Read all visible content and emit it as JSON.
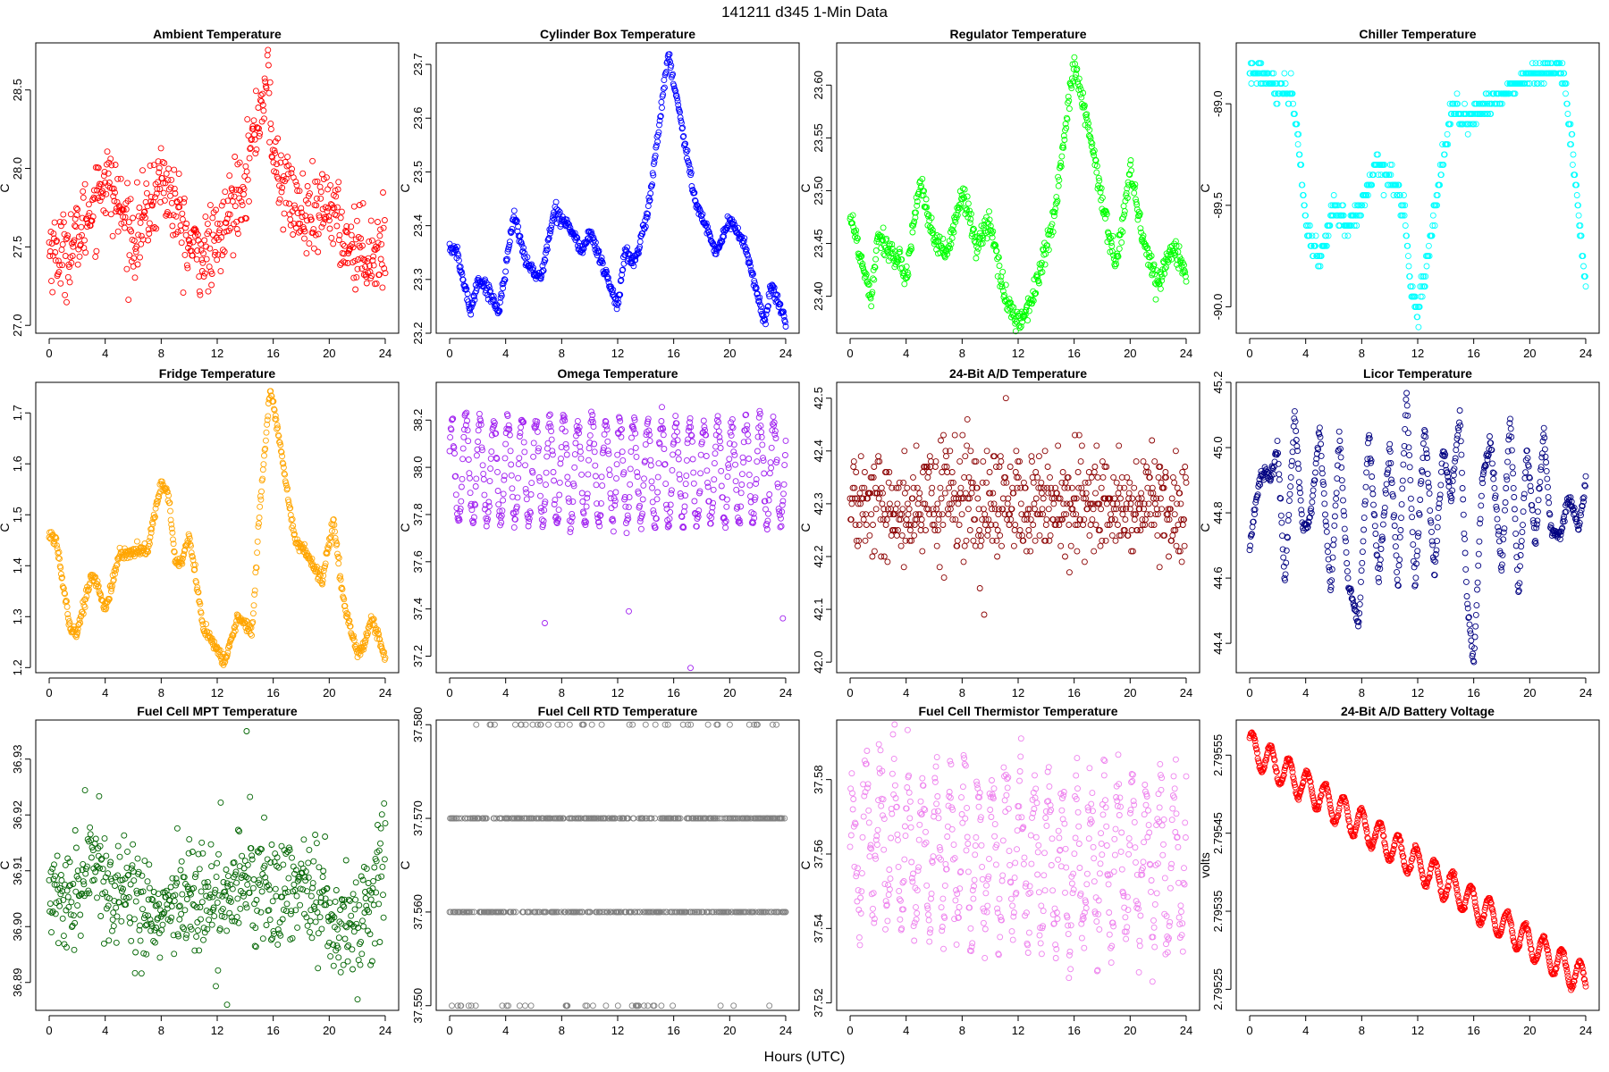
{
  "figure": {
    "suptitle": "141211    d345    1-Min Data",
    "xlabel": "Hours (UTC)"
  },
  "chart_data": [
    {
      "type": "scatter",
      "title": "Ambient Temperature",
      "ylabel": "C",
      "color": "#ff0000",
      "xlim": [
        -0.96,
        24.96
      ],
      "ylim": [
        26.95,
        28.8
      ],
      "xticks": [
        0,
        4,
        8,
        12,
        16,
        20,
        24
      ],
      "yticks": [
        27.0,
        27.5,
        28.0,
        28.5
      ],
      "ytick_labels": [
        "27.0",
        "27.5",
        "28.0",
        "28.5"
      ],
      "noise": 0.13,
      "x": [
        0,
        1,
        2,
        3,
        4,
        5,
        6,
        7,
        8,
        9,
        10,
        11,
        12,
        13,
        14,
        15,
        15.6,
        16,
        17,
        18,
        19,
        20,
        21,
        22,
        23,
        24
      ],
      "y": [
        27.5,
        27.45,
        27.55,
        27.75,
        27.95,
        27.75,
        27.55,
        27.7,
        27.95,
        27.75,
        27.5,
        27.45,
        27.5,
        27.75,
        27.95,
        28.35,
        28.6,
        28.05,
        27.85,
        27.7,
        27.65,
        27.8,
        27.55,
        27.5,
        27.45,
        27.5
      ]
    },
    {
      "type": "scatter",
      "title": "Cylinder Box Temperature",
      "ylabel": "C",
      "color": "#0000ff",
      "xlim": [
        -0.96,
        24.96
      ],
      "ylim": [
        23.2,
        23.74
      ],
      "xticks": [
        0,
        4,
        8,
        12,
        16,
        20,
        24
      ],
      "yticks": [
        23.2,
        23.3,
        23.4,
        23.5,
        23.6,
        23.7
      ],
      "ytick_labels": [
        "23.2",
        "23.3",
        "23.4",
        "23.5",
        "23.6",
        "23.7"
      ],
      "noise": 0.006,
      "x": [
        0,
        0.5,
        1.5,
        2,
        2.8,
        3.5,
        4.6,
        5.5,
        6.5,
        7.5,
        8.5,
        9.5,
        10,
        11,
        12,
        12.5,
        13.2,
        14.2,
        15.6,
        16.5,
        17.5,
        19,
        20,
        21,
        22.5,
        23,
        24
      ],
      "y": [
        23.36,
        23.35,
        23.24,
        23.3,
        23.28,
        23.24,
        23.42,
        23.33,
        23.3,
        23.43,
        23.4,
        23.35,
        23.39,
        23.32,
        23.25,
        23.35,
        23.33,
        23.43,
        23.72,
        23.6,
        23.45,
        23.35,
        23.41,
        23.37,
        23.22,
        23.29,
        23.22
      ]
    },
    {
      "type": "scatter",
      "title": "Regulator Temperature",
      "ylabel": "C",
      "color": "#00ff00",
      "xlim": [
        -0.96,
        24.96
      ],
      "ylim": [
        23.365,
        23.64
      ],
      "xticks": [
        0,
        4,
        8,
        12,
        16,
        20,
        24
      ],
      "yticks": [
        23.4,
        23.45,
        23.5,
        23.55,
        23.6
      ],
      "ytick_labels": [
        "23.40",
        "23.45",
        "23.50",
        "23.55",
        "23.60"
      ],
      "noise": 0.006,
      "x": [
        0,
        0.5,
        1.5,
        2,
        3,
        4,
        5,
        6,
        7,
        8,
        9,
        10,
        11,
        11.8,
        12.5,
        13.5,
        14.5,
        16,
        17,
        18,
        19,
        20,
        21,
        22,
        23,
        24
      ],
      "y": [
        23.48,
        23.45,
        23.4,
        23.46,
        23.44,
        23.42,
        23.51,
        23.45,
        23.44,
        23.5,
        23.45,
        23.47,
        23.4,
        23.38,
        23.38,
        23.42,
        23.47,
        23.62,
        23.56,
        23.49,
        23.43,
        23.52,
        23.45,
        23.41,
        23.45,
        23.42
      ]
    },
    {
      "type": "scatter",
      "title": "Chiller Temperature",
      "ylabel": "C",
      "color": "#00ffff",
      "xlim": [
        -0.96,
        24.96
      ],
      "ylim": [
        -90.13,
        -88.7
      ],
      "xticks": [
        0,
        4,
        8,
        12,
        16,
        20,
        24
      ],
      "yticks": [
        -90.0,
        -89.5,
        -89.0
      ],
      "ytick_labels": [
        "-90.0",
        "-89.5",
        "-89.0"
      ],
      "noise": 0.03,
      "quantize": 0.05,
      "x": [
        0,
        1,
        2,
        3,
        3.5,
        4,
        5,
        6,
        7,
        8,
        9,
        10,
        11,
        11.5,
        12,
        12.5,
        13.5,
        14.5,
        15.5,
        17,
        18,
        19,
        20,
        21,
        22,
        22.5,
        23,
        24
      ],
      "y": [
        -88.85,
        -88.85,
        -88.95,
        -88.95,
        -89.2,
        -89.6,
        -89.8,
        -89.5,
        -89.6,
        -89.5,
        -89.3,
        -89.35,
        -89.5,
        -89.9,
        -90.05,
        -89.85,
        -89.4,
        -89.0,
        -89.1,
        -89.0,
        -88.95,
        -88.9,
        -88.85,
        -88.85,
        -88.8,
        -88.9,
        -89.2,
        -89.9
      ]
    },
    {
      "type": "scatter",
      "title": "Fridge Temperature",
      "ylabel": "C",
      "color": "#ffa500",
      "xlim": [
        -0.96,
        24.96
      ],
      "ylim": [
        1.19,
        1.76
      ],
      "xticks": [
        0,
        4,
        8,
        12,
        16,
        20,
        24
      ],
      "yticks": [
        1.2,
        1.3,
        1.4,
        1.5,
        1.6,
        1.7
      ],
      "ytick_labels": [
        "1.2",
        "1.3",
        "1.4",
        "1.5",
        "1.6",
        "1.7"
      ],
      "noise": 0.006,
      "x": [
        0,
        0.5,
        1.5,
        2,
        3,
        3.5,
        4,
        5,
        6,
        7,
        8,
        8.5,
        9,
        9.5,
        10,
        11,
        12.5,
        13.5,
        14.5,
        15,
        15.8,
        16.5,
        17.5,
        18.5,
        19.5,
        20.3,
        21,
        22,
        22.5,
        23,
        24
      ],
      "y": [
        1.46,
        1.45,
        1.28,
        1.27,
        1.38,
        1.36,
        1.31,
        1.42,
        1.43,
        1.43,
        1.56,
        1.54,
        1.41,
        1.41,
        1.46,
        1.28,
        1.21,
        1.3,
        1.27,
        1.5,
        1.75,
        1.64,
        1.45,
        1.42,
        1.37,
        1.49,
        1.33,
        1.23,
        1.24,
        1.3,
        1.22
      ]
    },
    {
      "type": "scatter",
      "title": "Omega Temperature",
      "ylabel": "C",
      "color": "#a020f0",
      "xlim": [
        -0.96,
        24.96
      ],
      "ylim": [
        37.13,
        38.36
      ],
      "xticks": [
        0,
        4,
        8,
        12,
        16,
        20,
        24
      ],
      "yticks": [
        37.2,
        37.4,
        37.6,
        37.8,
        38.0,
        38.2
      ],
      "ytick_labels": [
        "37.2",
        "37.4",
        "37.6",
        "37.8",
        "38.0",
        "38.2"
      ],
      "noise": 0.02,
      "osc_amp": 0.22,
      "osc_period": 1.0,
      "x": [
        0,
        1,
        2,
        4,
        8,
        12,
        16,
        20,
        24
      ],
      "y": [
        37.95,
        38.0,
        37.98,
        37.98,
        37.98,
        37.98,
        37.98,
        37.98,
        37.98
      ],
      "outliers": [
        [
          6.8,
          37.34
        ],
        [
          12.8,
          37.39
        ],
        [
          17.2,
          37.15
        ],
        [
          23.8,
          37.36
        ]
      ]
    },
    {
      "type": "scatter",
      "title": "24-Bit A/D Temperature",
      "ylabel": "C",
      "color": "#8b0000",
      "xlim": [
        -0.96,
        24.96
      ],
      "ylim": [
        41.98,
        42.53
      ],
      "xticks": [
        0,
        4,
        8,
        12,
        16,
        20,
        24
      ],
      "yticks": [
        42.0,
        42.1,
        42.2,
        42.3,
        42.4,
        42.5
      ],
      "ytick_labels": [
        "42.0",
        "42.1",
        "42.2",
        "42.3",
        "42.4",
        "42.5"
      ],
      "noise": 0.05,
      "quantize": 0.01,
      "x": [
        0,
        4,
        8,
        12,
        16,
        20,
        24
      ],
      "y": [
        42.3,
        42.3,
        42.3,
        42.3,
        42.3,
        42.3,
        42.3
      ]
    },
    {
      "type": "scatter",
      "title": "Licor Temperature",
      "ylabel": "C",
      "color": "#000080",
      "xlim": [
        -0.96,
        24.96
      ],
      "ylim": [
        44.31,
        45.2
      ],
      "xticks": [
        0,
        4,
        8,
        12,
        16,
        20,
        24
      ],
      "yticks": [
        44.4,
        44.6,
        44.8,
        45.0,
        45.2
      ],
      "ytick_labels": [
        "44.4",
        "44.6",
        "44.8",
        "45.0",
        "45.2"
      ],
      "noise": 0.01,
      "x": [
        0,
        0.7,
        1.2,
        1.5,
        2,
        2.5,
        3.2,
        3.8,
        4.3,
        5,
        5.8,
        6.4,
        7,
        7.8,
        8.5,
        9.2,
        10,
        10.6,
        11.2,
        11.8,
        12.5,
        13.2,
        13.8,
        14.4,
        15,
        15.5,
        16,
        16.6,
        17.2,
        18,
        18.6,
        19.2,
        19.8,
        20.4,
        21,
        21.5,
        22.2,
        22.8,
        23.5,
        24
      ],
      "y": [
        44.7,
        44.9,
        44.93,
        44.9,
        45.01,
        44.58,
        45.1,
        44.75,
        44.78,
        45.05,
        44.55,
        45.05,
        44.6,
        44.45,
        45.05,
        44.6,
        45.0,
        44.57,
        45.17,
        44.57,
        45.07,
        44.6,
        45.0,
        44.85,
        45.1,
        44.55,
        44.33,
        44.9,
        45.02,
        44.62,
        45.1,
        44.55,
        45.0,
        44.7,
        45.05,
        44.75,
        44.73,
        44.85,
        44.75,
        44.9
      ]
    },
    {
      "type": "scatter",
      "title": "Fuel Cell MPT Temperature",
      "ylabel": "C",
      "color": "#006400",
      "xlim": [
        -0.96,
        24.96
      ],
      "ylim": [
        36.885,
        36.937
      ],
      "xticks": [
        0,
        4,
        8,
        12,
        16,
        20,
        24
      ],
      "yticks": [
        36.89,
        36.9,
        36.91,
        36.92,
        36.93
      ],
      "ytick_labels": [
        "36.89",
        "36.90",
        "36.91",
        "36.92",
        "36.93"
      ],
      "noise": 0.005,
      "x": [
        0,
        2,
        3,
        4,
        6,
        8,
        10,
        12,
        14,
        16,
        18,
        20,
        22,
        24
      ],
      "y": [
        36.906,
        36.905,
        36.915,
        36.905,
        36.906,
        36.9,
        36.906,
        36.904,
        36.91,
        36.905,
        36.908,
        36.903,
        36.9,
        36.912
      ],
      "outliers": [
        [
          12.7,
          36.886
        ],
        [
          14.1,
          36.935
        ]
      ]
    },
    {
      "type": "scatter",
      "title": "Fuel Cell RTD Temperature",
      "ylabel": "C",
      "color": "#808080",
      "xlim": [
        -0.96,
        24.96
      ],
      "ylim": [
        37.5495,
        37.5805
      ],
      "xticks": [
        0,
        4,
        8,
        12,
        16,
        20,
        24
      ],
      "yticks": [
        37.55,
        37.56,
        37.57,
        37.58
      ],
      "ytick_labels": [
        "37.550",
        "37.560",
        "37.570",
        "37.580"
      ],
      "noise": 0.0,
      "quantize": 0.01,
      "x": [
        0,
        24
      ],
      "y": [
        37.565,
        37.565
      ],
      "levels": [
        37.55,
        37.56,
        37.57,
        37.58
      ],
      "level_weights": [
        0.06,
        0.46,
        0.42,
        0.06
      ]
    },
    {
      "type": "scatter",
      "title": "Fuel Cell Thermistor Temperature",
      "ylabel": "C",
      "color": "#ee82ee",
      "xlim": [
        -0.96,
        24.96
      ],
      "ylim": [
        37.518,
        37.596
      ],
      "xticks": [
        0,
        4,
        8,
        12,
        16,
        20,
        24
      ],
      "yticks": [
        37.52,
        37.54,
        37.56,
        37.58
      ],
      "ytick_labels": [
        "37.52",
        "37.54",
        "37.56",
        "37.58"
      ],
      "noise": 0.005,
      "osc_amp": 0.02,
      "osc_period": 1.0,
      "x": [
        0,
        1,
        2,
        4,
        8,
        12,
        16,
        20,
        23,
        24
      ],
      "y": [
        37.555,
        37.565,
        37.565,
        37.56,
        37.56,
        37.56,
        37.555,
        37.56,
        37.555,
        37.565
      ]
    },
    {
      "type": "scatter",
      "title": "24-Bit A/D Battery Voltage",
      "ylabel": "volts",
      "color": "#ff0000",
      "xlim": [
        -0.96,
        24.96
      ],
      "ylim": [
        2.795223,
        2.795595
      ],
      "xticks": [
        0,
        4,
        8,
        12,
        16,
        20,
        24
      ],
      "yticks": [
        2.79525,
        2.79535,
        2.79545,
        2.79555
      ],
      "ytick_labels": [
        "2.79525",
        "2.79535",
        "2.79545",
        "2.79555"
      ],
      "noise": 1.5e-06,
      "osc_amp": 2e-05,
      "osc_period": 1.3,
      "x": [
        0,
        24
      ],
      "y": [
        2.79556,
        2.79526
      ]
    }
  ]
}
